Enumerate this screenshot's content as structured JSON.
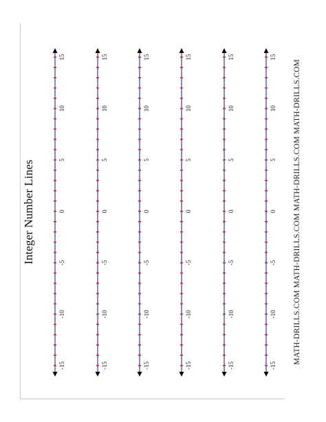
{
  "page": {
    "title": "Integer Number Lines",
    "footer_unit": "MATH-DRILLS.COM",
    "footer_repeat": 4
  },
  "number_lines": {
    "count": 6,
    "min": -15,
    "max": 15,
    "step": 1,
    "labeled_values": [
      "-15",
      "-10",
      "-5",
      "0",
      "5",
      "10",
      "15"
    ],
    "colors": {
      "line": "#2b2b8c",
      "tick": "#c41e3a",
      "arrow": "#000000"
    }
  }
}
